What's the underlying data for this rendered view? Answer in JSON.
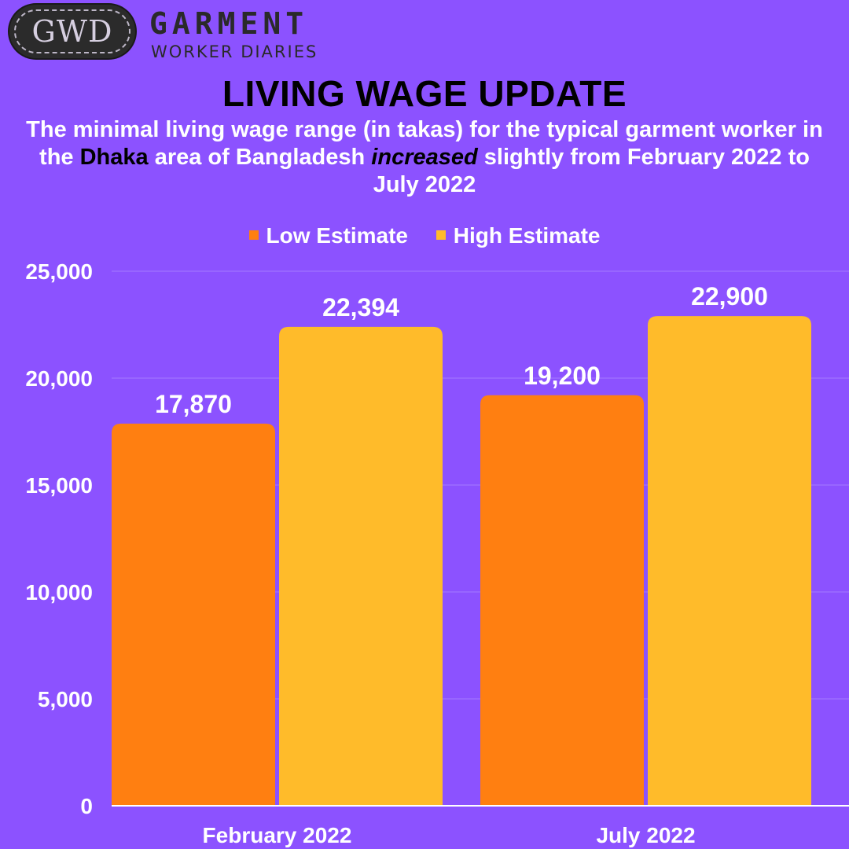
{
  "logo": {
    "badge": "GWD",
    "line1": "GARMENT",
    "line2": "WORKER DIARIES"
  },
  "header": {
    "title": "LIVING WAGE UPDATE",
    "subtitle_part1": "The minimal living wage range (in takas) for the typical garment worker in the ",
    "subtitle_highlight1": "Dhaka",
    "subtitle_part2": " area of Bangladesh ",
    "subtitle_highlight2": "increased",
    "subtitle_part3": " slightly from February 2022 to July 2022"
  },
  "colors": {
    "background": "#8c52ff",
    "low": "#ff7f11",
    "high": "#ffbb2a"
  },
  "chart_data": {
    "type": "bar",
    "categories": [
      "February 2022",
      "July 2022"
    ],
    "series": [
      {
        "name": "Low Estimate",
        "values": [
          17870,
          19200
        ],
        "labels": [
          "17,870",
          "19,200"
        ]
      },
      {
        "name": "High Estimate",
        "values": [
          22394,
          22900
        ],
        "labels": [
          "22,394",
          "22,900"
        ]
      }
    ],
    "ylim": [
      0,
      25000
    ],
    "yticks": [
      0,
      5000,
      10000,
      15000,
      20000,
      25000
    ],
    "ytick_labels": [
      "0",
      "5,000",
      "10,000",
      "15,000",
      "20,000",
      "25,000"
    ],
    "grid": true,
    "legend": "top-center"
  }
}
